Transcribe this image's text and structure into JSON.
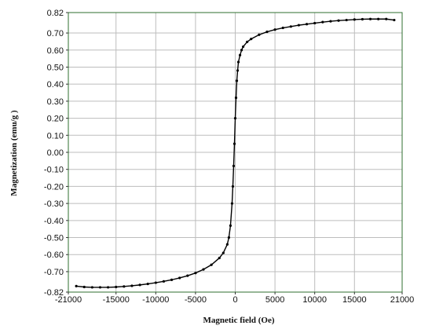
{
  "chart_data": {
    "type": "line",
    "title": "",
    "xlabel": "Magnetic field (Oe)",
    "ylabel": "Magnetization (emu/g )",
    "xlim": [
      -21000,
      21000
    ],
    "ylim": [
      -0.82,
      0.82
    ],
    "x_ticks": [
      -21000,
      -15000,
      -10000,
      -5000,
      0,
      5000,
      10000,
      15000,
      21000
    ],
    "x_tick_labels": [
      "-21000",
      "-15000",
      "-10000",
      "-5000",
      "0",
      "5000",
      "10000",
      "15000",
      "21000"
    ],
    "y_ticks": [
      0.82,
      0.7,
      0.6,
      0.5,
      0.4,
      0.3,
      0.2,
      0.1,
      0.0,
      -0.1,
      -0.2,
      -0.3,
      -0.4,
      -0.5,
      -0.6,
      -0.7,
      -0.82
    ],
    "y_tick_labels": [
      "0.82",
      "0.70",
      "0.60",
      "0.50",
      "0.40",
      "0.30",
      "0.20",
      "0.10",
      "0.00",
      "-0.10",
      "-0.20",
      "-0.30",
      "-0.40",
      "-0.50",
      "-0.60",
      "-0.70",
      "-0.82"
    ],
    "grid": true,
    "colors": {
      "series": "#000000",
      "frame": "#2f6f2f",
      "grid": "#bdbdbd"
    },
    "series": [
      {
        "x": [
          -20000,
          -19000,
          -18000,
          -17000,
          -16000,
          -15000,
          -14000,
          -13000,
          -12000,
          -11000,
          -10000,
          -9000,
          -8000,
          -7000,
          -6000,
          -5000,
          -4000,
          -3000,
          -2000,
          -1500,
          -1000,
          -800,
          -600,
          -400,
          -300,
          -200,
          -100,
          0,
          100,
          200,
          300,
          400,
          600,
          800,
          1000,
          1500,
          2000,
          3000,
          4000,
          5000,
          6000,
          7000,
          8000,
          9000,
          10000,
          11000,
          12000,
          13000,
          14000,
          15000,
          16000,
          17000,
          18000,
          19000,
          20000
        ],
        "y": [
          -0.785,
          -0.79,
          -0.792,
          -0.792,
          -0.792,
          -0.79,
          -0.787,
          -0.783,
          -0.778,
          -0.772,
          -0.765,
          -0.757,
          -0.748,
          -0.737,
          -0.724,
          -0.708,
          -0.687,
          -0.66,
          -0.62,
          -0.59,
          -0.54,
          -0.5,
          -0.43,
          -0.3,
          -0.2,
          -0.08,
          0.05,
          0.2,
          0.32,
          0.42,
          0.48,
          0.53,
          0.57,
          0.6,
          0.62,
          0.648,
          0.665,
          0.69,
          0.707,
          0.72,
          0.73,
          0.738,
          0.746,
          0.752,
          0.758,
          0.764,
          0.769,
          0.773,
          0.776,
          0.779,
          0.781,
          0.782,
          0.782,
          0.782,
          0.776
        ]
      }
    ]
  }
}
